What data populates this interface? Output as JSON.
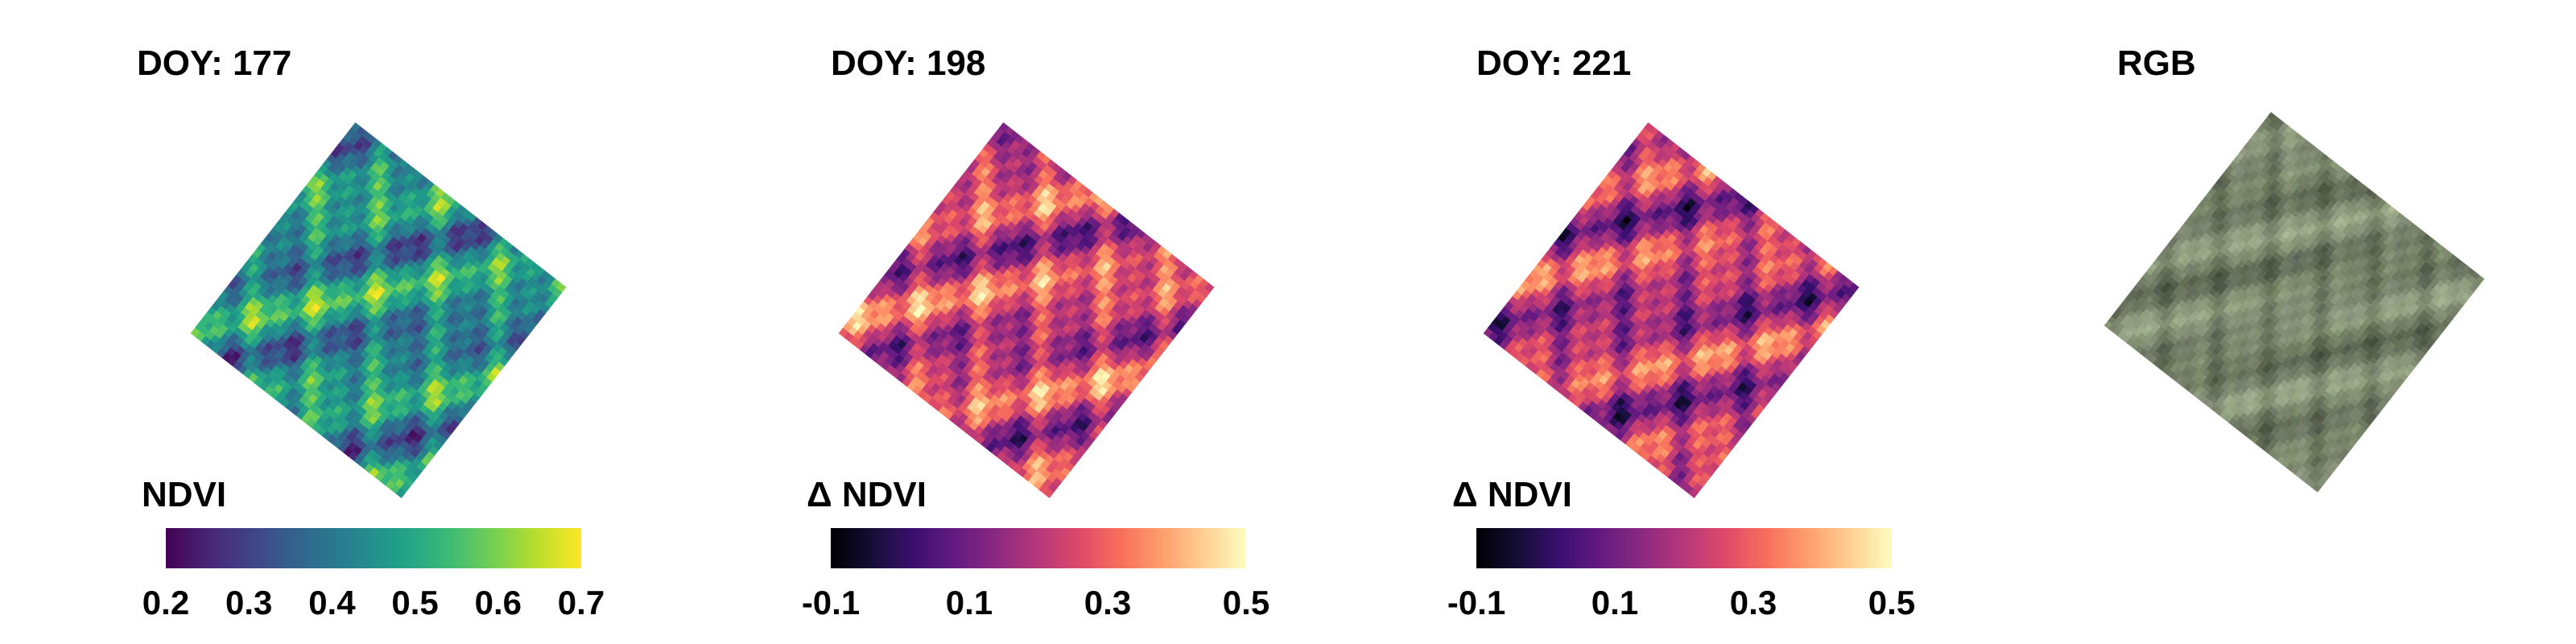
{
  "chart_data": [
    {
      "type": "heatmap",
      "title": "DOY: 177",
      "colorbar": {
        "label": "NDVI",
        "colormap": "viridis",
        "range": [
          0.2,
          0.7
        ],
        "ticks": [
          "0.2",
          "0.3",
          "0.4",
          "0.5",
          "0.6",
          "0.7"
        ]
      }
    },
    {
      "type": "heatmap",
      "title": "DOY: 198",
      "colorbar": {
        "label": "Δ NDVI",
        "colormap": "magma",
        "range": [
          -0.1,
          0.5
        ],
        "ticks": [
          "-0.1",
          "0.1",
          "0.3",
          "0.5"
        ]
      }
    },
    {
      "type": "heatmap",
      "title": "DOY: 221",
      "colorbar": {
        "label": "Δ NDVI",
        "colormap": "magma",
        "range": [
          -0.1,
          0.5
        ],
        "ticks": [
          "-0.1",
          "0.1",
          "0.3",
          "0.5"
        ]
      }
    },
    {
      "type": "image",
      "title": "RGB"
    }
  ]
}
